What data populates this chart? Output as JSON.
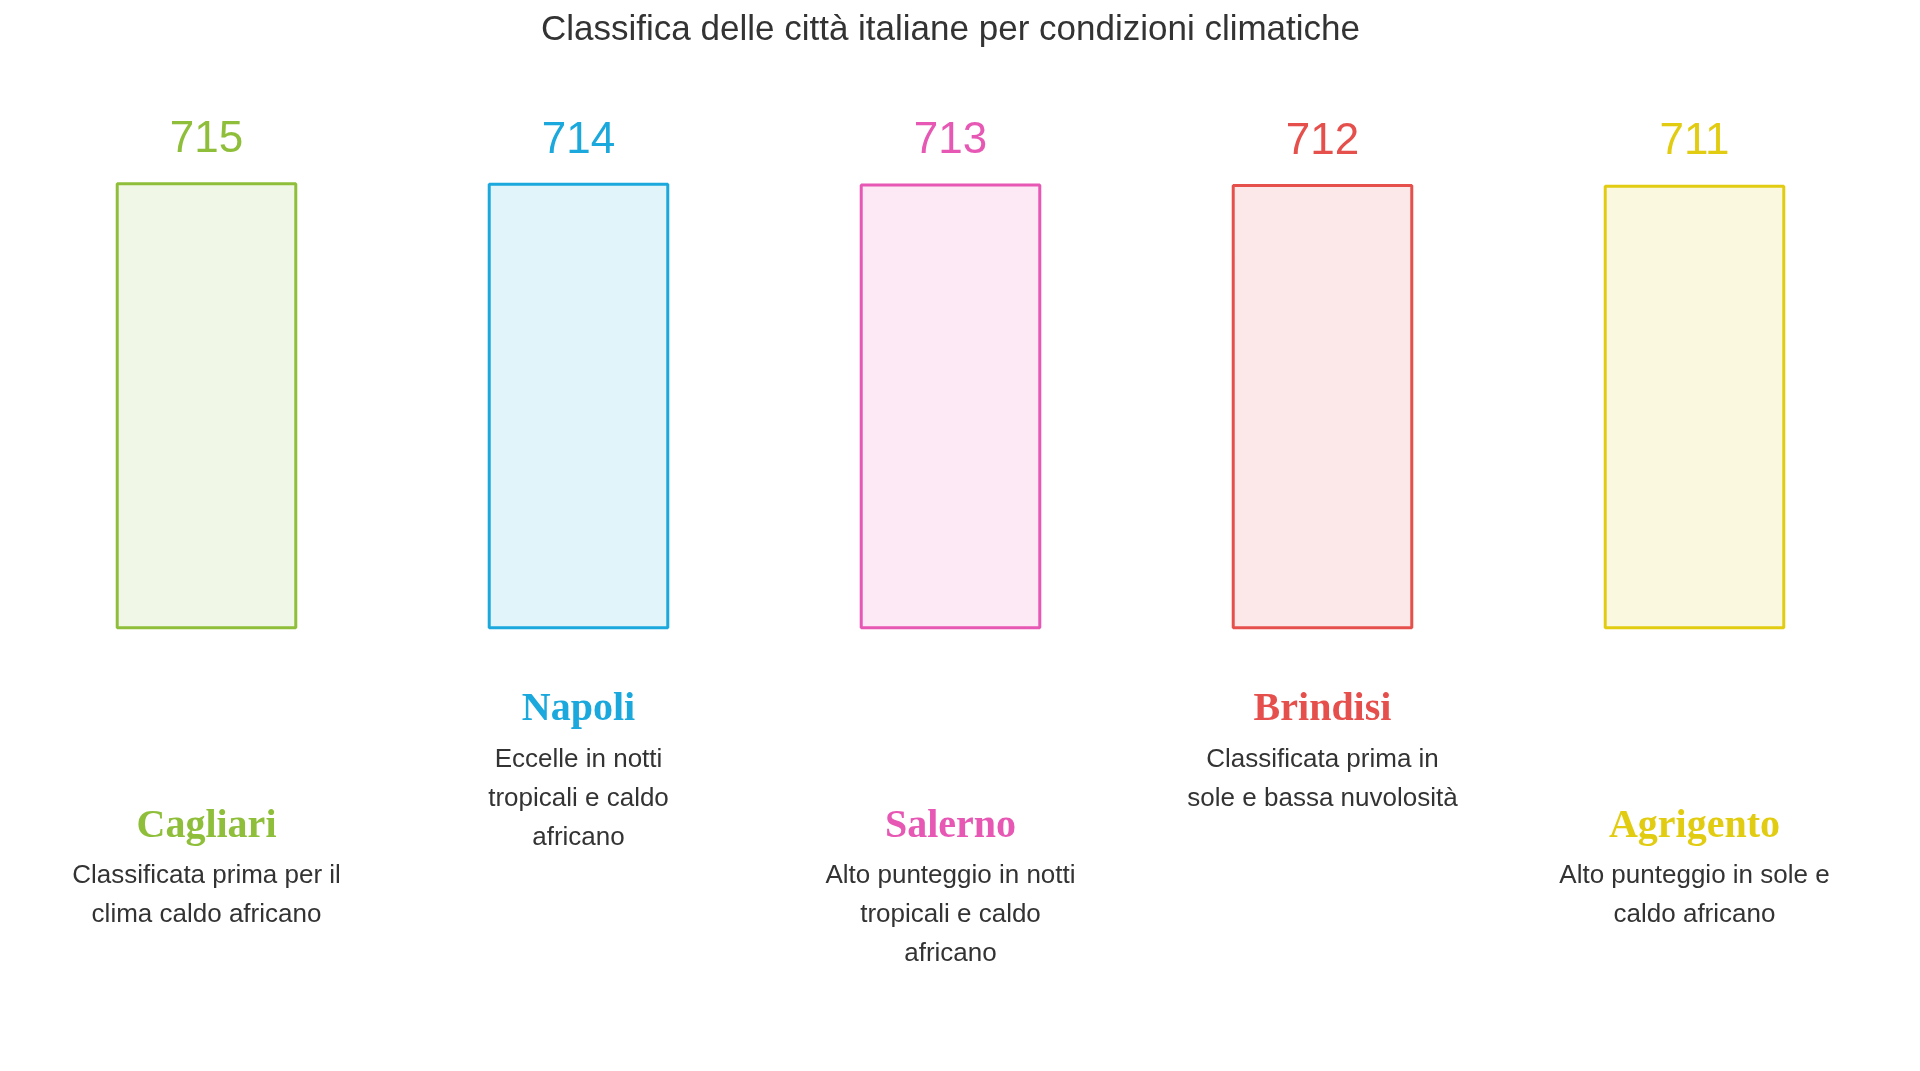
{
  "chart_data": {
    "type": "bar",
    "title": "Classifica delle città italiane per condizioni climatiche",
    "categories": [
      "Cagliari",
      "Napoli",
      "Salerno",
      "Brindisi",
      "Agrigento"
    ],
    "values": [
      715,
      714,
      713,
      712,
      711
    ],
    "colors": [
      "#8fbf3a",
      "#1ba8dc",
      "#e757b4",
      "#e5504c",
      "#e2cc12"
    ],
    "data_labels": true,
    "annotations": [
      "Classificata prima per il clima caldo africano",
      "Eccelle in notti tropicali e caldo africano",
      "Alto punteggio in notti tropicali e caldo africano",
      "Classificata prima in sole e bassa nuvolosità",
      "Alto punteggio in sole e caldo africano"
    ]
  }
}
